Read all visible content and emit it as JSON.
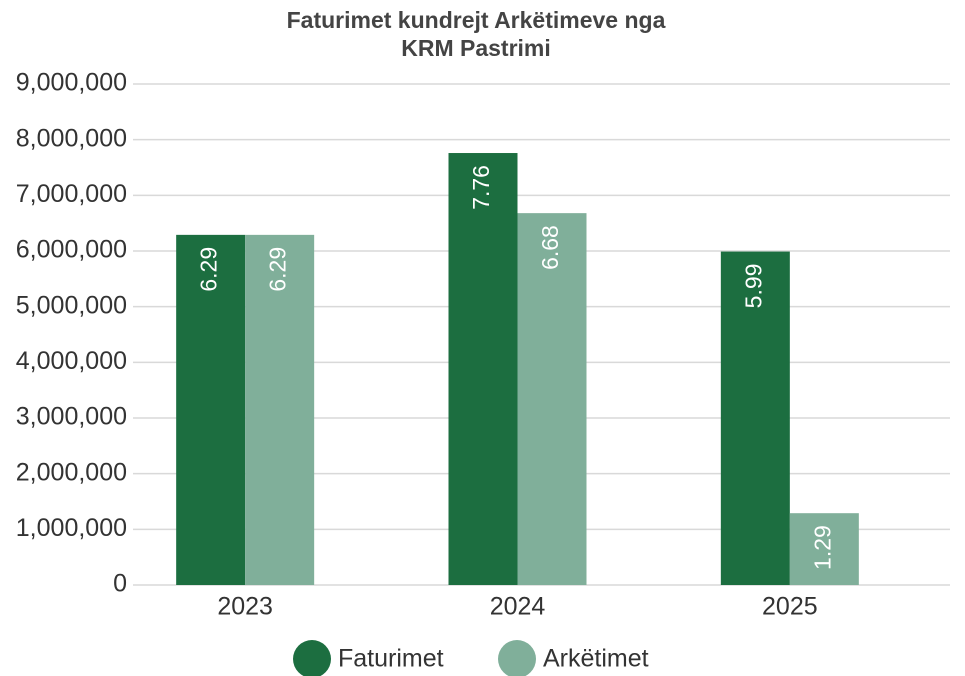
{
  "chart_data": {
    "type": "bar",
    "title": [
      "Faturimet kundrejt Arkëtimeve nga",
      "KRM Pastrimi"
    ],
    "categories": [
      "2023",
      "2024",
      "2025"
    ],
    "series": [
      {
        "name": "Faturimet",
        "color": "#1c6e40",
        "values": [
          6290000,
          7760000,
          5990000
        ],
        "value_labels": [
          "6.29",
          "7.76",
          "5.99"
        ]
      },
      {
        "name": "Arkëtimet",
        "color": "#80af9a",
        "values": [
          6290000,
          6680000,
          1290000
        ],
        "value_labels": [
          "6.29",
          "6.68",
          "1.29"
        ]
      }
    ],
    "ylim": [
      0,
      9000000
    ],
    "yticks": [
      0,
      {
        "value": 1000000,
        "label": "1,000,000"
      },
      {
        "value": 2000000,
        "label": "2,000,000"
      },
      {
        "value": 3000000,
        "label": "3,000,000"
      },
      {
        "value": 4000000,
        "label": "4,000,000"
      },
      {
        "value": 5000000,
        "label": "5,000,000"
      },
      {
        "value": 6000000,
        "label": "6,000,000"
      },
      {
        "value": 7000000,
        "label": "7,000,000"
      },
      {
        "value": 8000000,
        "label": "8,000,000"
      },
      {
        "value": 9000000,
        "label": "9,000,000"
      }
    ],
    "grid": true,
    "legend": "bottom"
  }
}
